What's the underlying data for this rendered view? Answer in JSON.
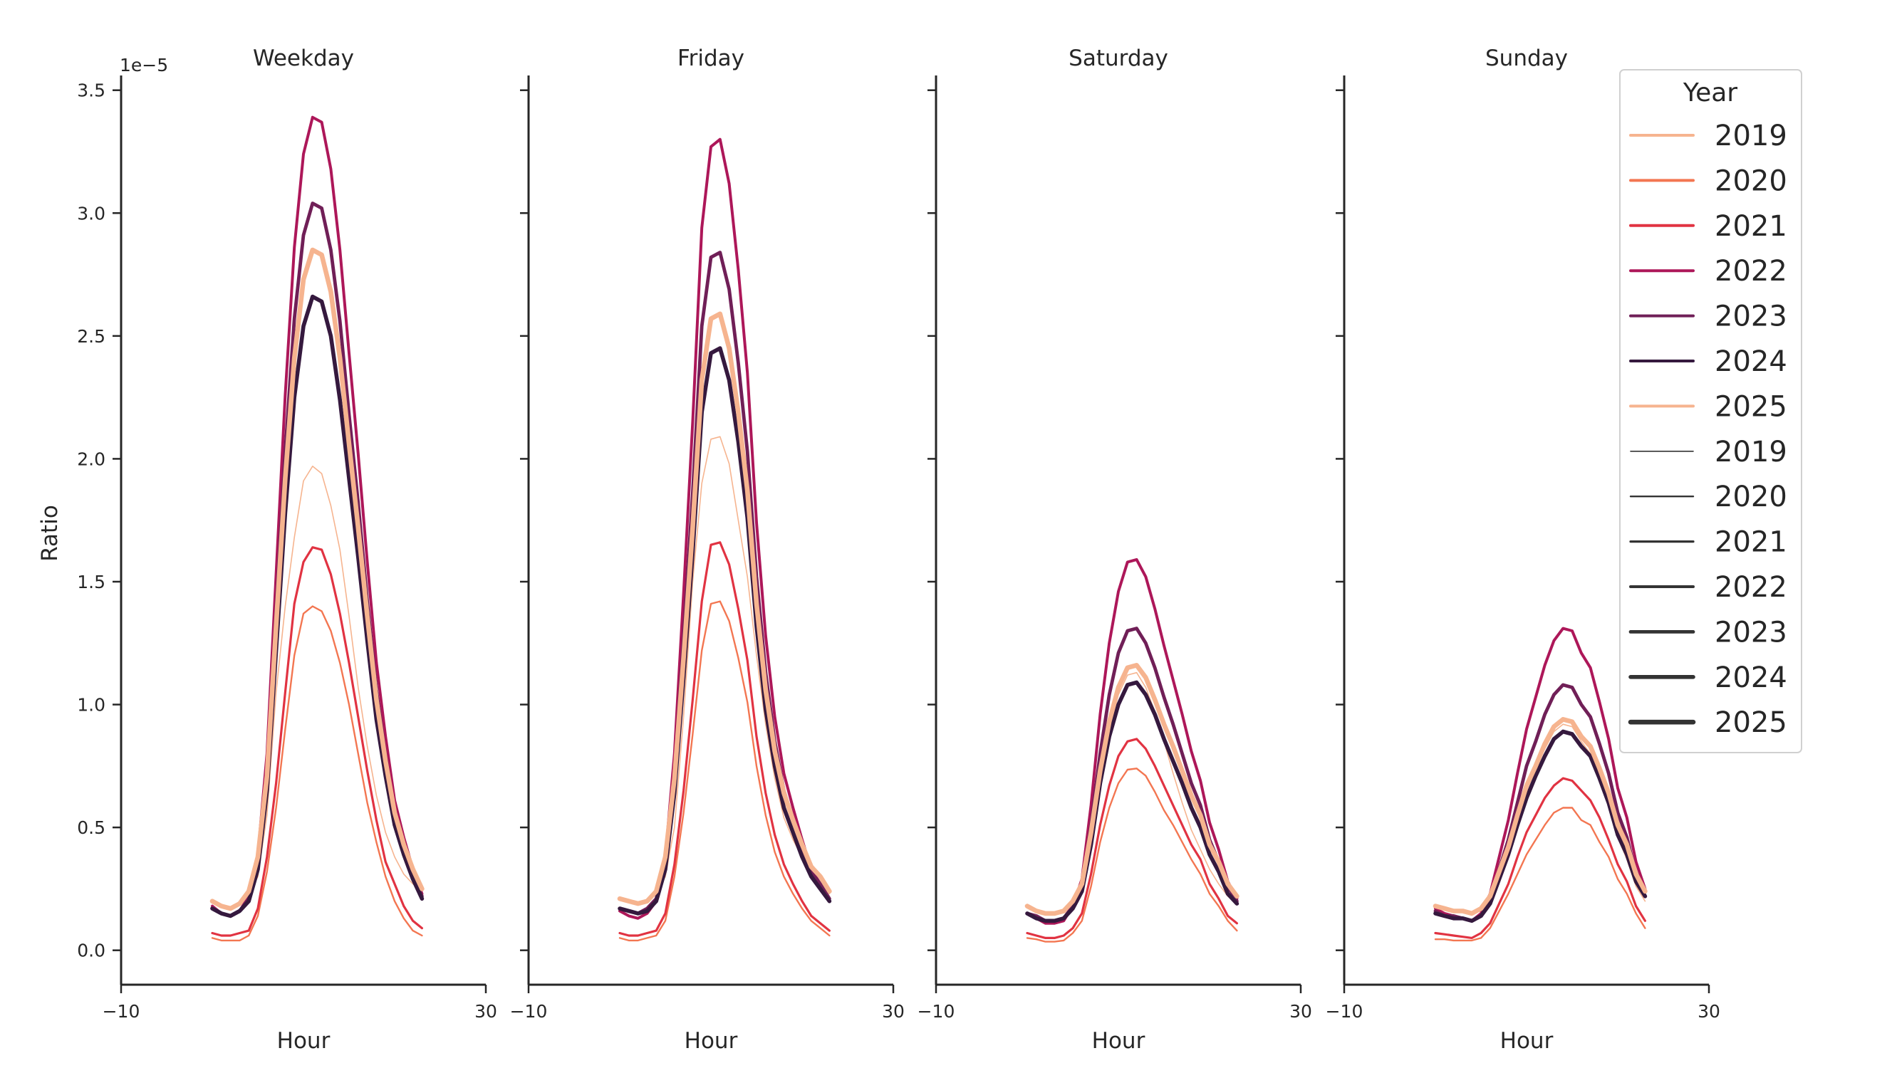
{
  "chart_data": {
    "type": "line",
    "ylabel": "Ratio",
    "xlabel": "Hour",
    "y_offset_label": "1e−5",
    "xlim": [
      -10,
      30
    ],
    "ylim": [
      -0.14,
      3.56
    ],
    "x_ticks": [
      -10,
      30
    ],
    "x_tick_labels": [
      "−10",
      "30"
    ],
    "y_ticks": [
      0,
      0.5,
      1,
      1.5,
      2,
      2.5,
      3,
      3.5
    ],
    "y_tick_labels": [
      "0.0",
      "0.5",
      "1.0",
      "1.5",
      "2.0",
      "2.5",
      "3.0",
      "3.5"
    ],
    "grid": false,
    "x": [
      0,
      1,
      2,
      3,
      4,
      5,
      6,
      7,
      8,
      9,
      10,
      11,
      12,
      13,
      14,
      15,
      16,
      17,
      18,
      19,
      20,
      21,
      22,
      23
    ],
    "colors": {
      "2019": "#f6b48f",
      "2020": "#f37651",
      "2021": "#e13342",
      "2022": "#ad1759",
      "2023": "#701f57",
      "2024": "#35193e",
      "2025": "#f6b48f"
    },
    "legend": {
      "title": "Year",
      "placement": "top-right",
      "hue_entries": [
        "2019",
        "2020",
        "2021",
        "2022",
        "2023",
        "2024",
        "2025"
      ],
      "size_entries": [
        "2019",
        "2020",
        "2021",
        "2022",
        "2023",
        "2024",
        "2025"
      ],
      "size_color": "#333333"
    },
    "panels": [
      {
        "title": "Weekday",
        "series": [
          {
            "name": "2019",
            "values": [
              0.2,
              0.18,
              0.17,
              0.19,
              0.23,
              0.3,
              0.55,
              1.05,
              1.4,
              1.68,
              1.91,
              1.97,
              1.94,
              1.81,
              1.63,
              1.36,
              1.07,
              0.83,
              0.63,
              0.48,
              0.38,
              0.31,
              0.27,
              0.25
            ]
          },
          {
            "name": "2020",
            "values": [
              0.05,
              0.04,
              0.04,
              0.04,
              0.06,
              0.14,
              0.32,
              0.58,
              0.9,
              1.2,
              1.37,
              1.4,
              1.38,
              1.3,
              1.17,
              1.0,
              0.8,
              0.6,
              0.44,
              0.3,
              0.2,
              0.13,
              0.08,
              0.06
            ]
          },
          {
            "name": "2021",
            "values": [
              0.07,
              0.06,
              0.06,
              0.07,
              0.08,
              0.17,
              0.38,
              0.68,
              1.05,
              1.41,
              1.58,
              1.64,
              1.63,
              1.53,
              1.37,
              1.17,
              0.95,
              0.73,
              0.53,
              0.36,
              0.27,
              0.18,
              0.12,
              0.09
            ]
          },
          {
            "name": "2022",
            "values": [
              0.18,
              0.15,
              0.14,
              0.16,
              0.22,
              0.39,
              0.8,
              1.53,
              2.26,
              2.86,
              3.24,
              3.39,
              3.37,
              3.18,
              2.85,
              2.43,
              2.02,
              1.58,
              1.17,
              0.87,
              0.61,
              0.46,
              0.33,
              0.23
            ]
          },
          {
            "name": "2023",
            "values": [
              0.17,
              0.15,
              0.14,
              0.16,
              0.21,
              0.36,
              0.73,
              1.38,
              2.03,
              2.57,
              2.91,
              3.04,
              3.02,
              2.85,
              2.56,
              2.18,
              1.82,
              1.42,
              1.06,
              0.79,
              0.56,
              0.42,
              0.31,
              0.22
            ]
          },
          {
            "name": "2024",
            "values": [
              0.17,
              0.15,
              0.14,
              0.16,
              0.2,
              0.33,
              0.65,
              1.22,
              1.78,
              2.25,
              2.54,
              2.66,
              2.64,
              2.5,
              2.24,
              1.92,
              1.6,
              1.26,
              0.94,
              0.71,
              0.51,
              0.39,
              0.29,
              0.21
            ]
          },
          {
            "name": "2025",
            "values": [
              0.2,
              0.18,
              0.17,
              0.19,
              0.24,
              0.38,
              0.71,
              1.32,
              1.92,
              2.41,
              2.73,
              2.85,
              2.83,
              2.68,
              2.41,
              2.06,
              1.72,
              1.36,
              1.02,
              0.77,
              0.56,
              0.43,
              0.33,
              0.25
            ]
          }
        ]
      },
      {
        "title": "Friday",
        "series": [
          {
            "name": "2019",
            "values": [
              0.21,
              0.2,
              0.19,
              0.2,
              0.23,
              0.3,
              0.5,
              0.95,
              1.5,
              1.9,
              2.08,
              2.09,
              1.98,
              1.75,
              1.52,
              1.2,
              0.92,
              0.7,
              0.54,
              0.45,
              0.38,
              0.31,
              0.27,
              0.23
            ]
          },
          {
            "name": "2020",
            "values": [
              0.05,
              0.04,
              0.04,
              0.05,
              0.06,
              0.12,
              0.3,
              0.56,
              0.88,
              1.22,
              1.41,
              1.42,
              1.34,
              1.19,
              1.01,
              0.75,
              0.55,
              0.4,
              0.3,
              0.23,
              0.17,
              0.12,
              0.09,
              0.06
            ]
          },
          {
            "name": "2021",
            "values": [
              0.07,
              0.06,
              0.06,
              0.07,
              0.08,
              0.15,
              0.35,
              0.65,
              1.02,
              1.42,
              1.65,
              1.66,
              1.57,
              1.39,
              1.18,
              0.87,
              0.64,
              0.47,
              0.35,
              0.27,
              0.2,
              0.14,
              0.11,
              0.08
            ]
          },
          {
            "name": "2022",
            "values": [
              0.16,
              0.14,
              0.13,
              0.15,
              0.2,
              0.38,
              0.8,
              1.45,
              2.15,
              2.94,
              3.27,
              3.3,
              3.12,
              2.77,
              2.35,
              1.74,
              1.28,
              0.95,
              0.72,
              0.58,
              0.45,
              0.33,
              0.27,
              0.2
            ]
          },
          {
            "name": "2023",
            "values": [
              0.17,
              0.16,
              0.15,
              0.17,
              0.21,
              0.36,
              0.72,
              1.27,
              1.86,
              2.54,
              2.82,
              2.84,
              2.69,
              2.39,
              2.03,
              1.52,
              1.13,
              0.85,
              0.65,
              0.53,
              0.42,
              0.32,
              0.27,
              0.21
            ]
          },
          {
            "name": "2024",
            "values": [
              0.17,
              0.16,
              0.15,
              0.16,
              0.2,
              0.33,
              0.64,
              1.11,
              1.62,
              2.19,
              2.43,
              2.45,
              2.32,
              2.07,
              1.76,
              1.32,
              0.98,
              0.75,
              0.58,
              0.48,
              0.38,
              0.3,
              0.25,
              0.2
            ]
          },
          {
            "name": "2025",
            "values": [
              0.21,
              0.2,
              0.19,
              0.2,
              0.24,
              0.38,
              0.7,
              1.19,
              1.72,
              2.32,
              2.57,
              2.59,
              2.45,
              2.19,
              1.87,
              1.41,
              1.06,
              0.81,
              0.64,
              0.53,
              0.43,
              0.34,
              0.3,
              0.24
            ]
          }
        ]
      },
      {
        "title": "Saturday",
        "series": [
          {
            "name": "2019",
            "values": [
              0.18,
              0.16,
              0.15,
              0.15,
              0.16,
              0.19,
              0.25,
              0.45,
              0.7,
              0.9,
              1.04,
              1.12,
              1.13,
              1.07,
              0.97,
              0.85,
              0.72,
              0.6,
              0.49,
              0.41,
              0.33,
              0.27,
              0.22,
              0.19
            ]
          },
          {
            "name": "2020",
            "values": [
              0.05,
              0.045,
              0.035,
              0.035,
              0.04,
              0.07,
              0.12,
              0.26,
              0.44,
              0.58,
              0.68,
              0.735,
              0.74,
              0.71,
              0.645,
              0.57,
              0.51,
              0.44,
              0.37,
              0.31,
              0.23,
              0.18,
              0.12,
              0.08
            ]
          },
          {
            "name": "2021",
            "values": [
              0.07,
              0.06,
              0.05,
              0.05,
              0.06,
              0.09,
              0.15,
              0.31,
              0.51,
              0.67,
              0.79,
              0.85,
              0.86,
              0.82,
              0.75,
              0.67,
              0.59,
              0.51,
              0.43,
              0.37,
              0.27,
              0.21,
              0.14,
              0.11
            ]
          },
          {
            "name": "2022",
            "values": [
              0.15,
              0.13,
              0.11,
              0.11,
              0.12,
              0.18,
              0.29,
              0.59,
              0.96,
              1.25,
              1.46,
              1.58,
              1.59,
              1.52,
              1.39,
              1.24,
              1.1,
              0.96,
              0.81,
              0.69,
              0.52,
              0.41,
              0.28,
              0.21
            ]
          },
          {
            "name": "2023",
            "values": [
              0.15,
              0.14,
              0.12,
              0.12,
              0.13,
              0.18,
              0.27,
              0.51,
              0.8,
              1.04,
              1.21,
              1.3,
              1.31,
              1.25,
              1.15,
              1.03,
              0.92,
              0.8,
              0.68,
              0.59,
              0.45,
              0.36,
              0.26,
              0.2
            ]
          },
          {
            "name": "2024",
            "values": [
              0.15,
              0.13,
              0.12,
              0.12,
              0.13,
              0.17,
              0.24,
              0.43,
              0.68,
              0.87,
              1.0,
              1.08,
              1.09,
              1.04,
              0.96,
              0.86,
              0.77,
              0.68,
              0.58,
              0.5,
              0.39,
              0.32,
              0.23,
              0.19
            ]
          },
          {
            "name": "2025",
            "values": [
              0.18,
              0.16,
              0.15,
              0.15,
              0.16,
              0.2,
              0.27,
              0.48,
              0.73,
              0.93,
              1.07,
              1.15,
              1.16,
              1.11,
              1.02,
              0.92,
              0.83,
              0.73,
              0.63,
              0.55,
              0.43,
              0.36,
              0.27,
              0.22
            ]
          }
        ]
      },
      {
        "title": "Sunday",
        "series": [
          {
            "name": "2019",
            "values": [
              0.18,
              0.17,
              0.16,
              0.16,
              0.15,
              0.16,
              0.2,
              0.29,
              0.4,
              0.53,
              0.65,
              0.74,
              0.82,
              0.89,
              0.92,
              0.91,
              0.85,
              0.8,
              0.7,
              0.59,
              0.46,
              0.37,
              0.26,
              0.2
            ]
          },
          {
            "name": "2020",
            "values": [
              0.045,
              0.045,
              0.04,
              0.04,
              0.04,
              0.05,
              0.09,
              0.16,
              0.23,
              0.31,
              0.39,
              0.45,
              0.51,
              0.56,
              0.58,
              0.58,
              0.53,
              0.51,
              0.44,
              0.38,
              0.29,
              0.23,
              0.15,
              0.09
            ]
          },
          {
            "name": "2021",
            "values": [
              0.07,
              0.065,
              0.06,
              0.055,
              0.05,
              0.07,
              0.11,
              0.19,
              0.27,
              0.38,
              0.48,
              0.55,
              0.62,
              0.67,
              0.7,
              0.69,
              0.65,
              0.61,
              0.54,
              0.45,
              0.35,
              0.28,
              0.18,
              0.12
            ]
          },
          {
            "name": "2022",
            "values": [
              0.17,
              0.15,
              0.14,
              0.13,
              0.12,
              0.15,
              0.23,
              0.38,
              0.53,
              0.72,
              0.9,
              1.03,
              1.16,
              1.26,
              1.31,
              1.3,
              1.21,
              1.15,
              1.01,
              0.86,
              0.66,
              0.54,
              0.36,
              0.25
            ]
          },
          {
            "name": "2023",
            "values": [
              0.16,
              0.14,
              0.14,
              0.13,
              0.12,
              0.14,
              0.21,
              0.33,
              0.45,
              0.6,
              0.75,
              0.85,
              0.96,
              1.04,
              1.08,
              1.07,
              1.0,
              0.95,
              0.84,
              0.72,
              0.56,
              0.46,
              0.31,
              0.22
            ]
          },
          {
            "name": "2024",
            "values": [
              0.15,
              0.14,
              0.13,
              0.13,
              0.12,
              0.14,
              0.19,
              0.29,
              0.39,
              0.51,
              0.62,
              0.71,
              0.79,
              0.86,
              0.89,
              0.88,
              0.83,
              0.79,
              0.7,
              0.6,
              0.47,
              0.39,
              0.28,
              0.22
            ]
          },
          {
            "name": "2025",
            "values": [
              0.18,
              0.17,
              0.16,
              0.16,
              0.15,
              0.17,
              0.22,
              0.32,
              0.42,
              0.55,
              0.67,
              0.75,
              0.84,
              0.91,
              0.94,
              0.93,
              0.87,
              0.83,
              0.74,
              0.64,
              0.51,
              0.43,
              0.31,
              0.24
            ]
          }
        ]
      }
    ]
  }
}
